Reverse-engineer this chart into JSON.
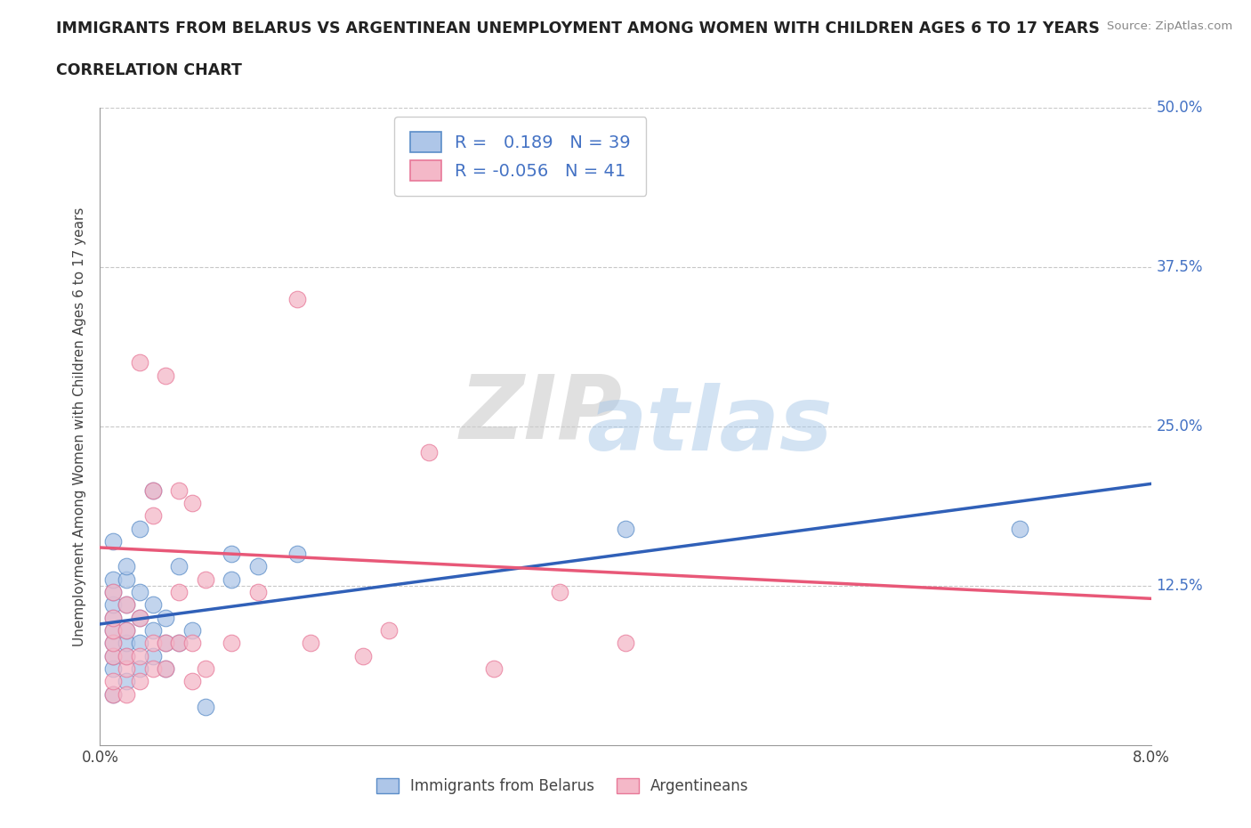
{
  "title_line1": "IMMIGRANTS FROM BELARUS VS ARGENTINEAN UNEMPLOYMENT AMONG WOMEN WITH CHILDREN AGES 6 TO 17 YEARS",
  "title_line2": "CORRELATION CHART",
  "source_text": "Source: ZipAtlas.com",
  "ylabel": "Unemployment Among Women with Children Ages 6 to 17 years",
  "xlim": [
    0.0,
    0.08
  ],
  "ylim": [
    0.0,
    0.5
  ],
  "xticks": [
    0.0,
    0.01,
    0.02,
    0.03,
    0.04,
    0.05,
    0.06,
    0.07,
    0.08
  ],
  "xticklabels": [
    "0.0%",
    "",
    "",
    "",
    "",
    "",
    "",
    "",
    "8.0%"
  ],
  "ytick_positions": [
    0.125,
    0.25,
    0.375,
    0.5
  ],
  "ytick_labels": [
    "12.5%",
    "25.0%",
    "37.5%",
    "50.0%"
  ],
  "blue_R": 0.189,
  "blue_N": 39,
  "pink_R": -0.056,
  "pink_N": 41,
  "blue_fill_color": "#aec6e8",
  "pink_fill_color": "#f4b8c8",
  "blue_edge_color": "#5b8dc8",
  "pink_edge_color": "#e87898",
  "blue_line_color": "#3060b8",
  "pink_line_color": "#e85878",
  "legend_label_blue": "Immigrants from Belarus",
  "legend_label_pink": "Argentineans",
  "watermark_zip": "ZIP",
  "watermark_atlas": "atlas",
  "grid_color": "#c8c8c8",
  "bg_color": "#ffffff",
  "text_color": "#222222",
  "right_label_color": "#4472c4",
  "blue_scatter_x": [
    0.001,
    0.001,
    0.001,
    0.001,
    0.001,
    0.001,
    0.001,
    0.001,
    0.001,
    0.001,
    0.002,
    0.002,
    0.002,
    0.002,
    0.002,
    0.002,
    0.002,
    0.003,
    0.003,
    0.003,
    0.003,
    0.003,
    0.004,
    0.004,
    0.004,
    0.004,
    0.005,
    0.005,
    0.005,
    0.006,
    0.006,
    0.007,
    0.008,
    0.01,
    0.01,
    0.012,
    0.015,
    0.04,
    0.07
  ],
  "blue_scatter_y": [
    0.04,
    0.06,
    0.07,
    0.08,
    0.09,
    0.1,
    0.11,
    0.12,
    0.13,
    0.16,
    0.05,
    0.07,
    0.08,
    0.09,
    0.11,
    0.13,
    0.14,
    0.06,
    0.08,
    0.1,
    0.12,
    0.17,
    0.07,
    0.09,
    0.11,
    0.2,
    0.06,
    0.08,
    0.1,
    0.08,
    0.14,
    0.09,
    0.03,
    0.13,
    0.15,
    0.14,
    0.15,
    0.17,
    0.17
  ],
  "pink_scatter_x": [
    0.001,
    0.001,
    0.001,
    0.001,
    0.001,
    0.001,
    0.001,
    0.002,
    0.002,
    0.002,
    0.002,
    0.002,
    0.003,
    0.003,
    0.003,
    0.003,
    0.004,
    0.004,
    0.004,
    0.004,
    0.005,
    0.005,
    0.005,
    0.006,
    0.006,
    0.006,
    0.007,
    0.007,
    0.007,
    0.008,
    0.008,
    0.01,
    0.012,
    0.015,
    0.016,
    0.02,
    0.022,
    0.025,
    0.03,
    0.035,
    0.04
  ],
  "pink_scatter_y": [
    0.04,
    0.05,
    0.07,
    0.08,
    0.09,
    0.1,
    0.12,
    0.04,
    0.06,
    0.07,
    0.09,
    0.11,
    0.05,
    0.07,
    0.1,
    0.3,
    0.06,
    0.08,
    0.18,
    0.2,
    0.06,
    0.08,
    0.29,
    0.08,
    0.12,
    0.2,
    0.05,
    0.08,
    0.19,
    0.06,
    0.13,
    0.08,
    0.12,
    0.35,
    0.08,
    0.07,
    0.09,
    0.23,
    0.06,
    0.12,
    0.08
  ],
  "trend_blue_y0": 0.095,
  "trend_blue_y1": 0.205,
  "trend_pink_y0": 0.155,
  "trend_pink_y1": 0.115
}
